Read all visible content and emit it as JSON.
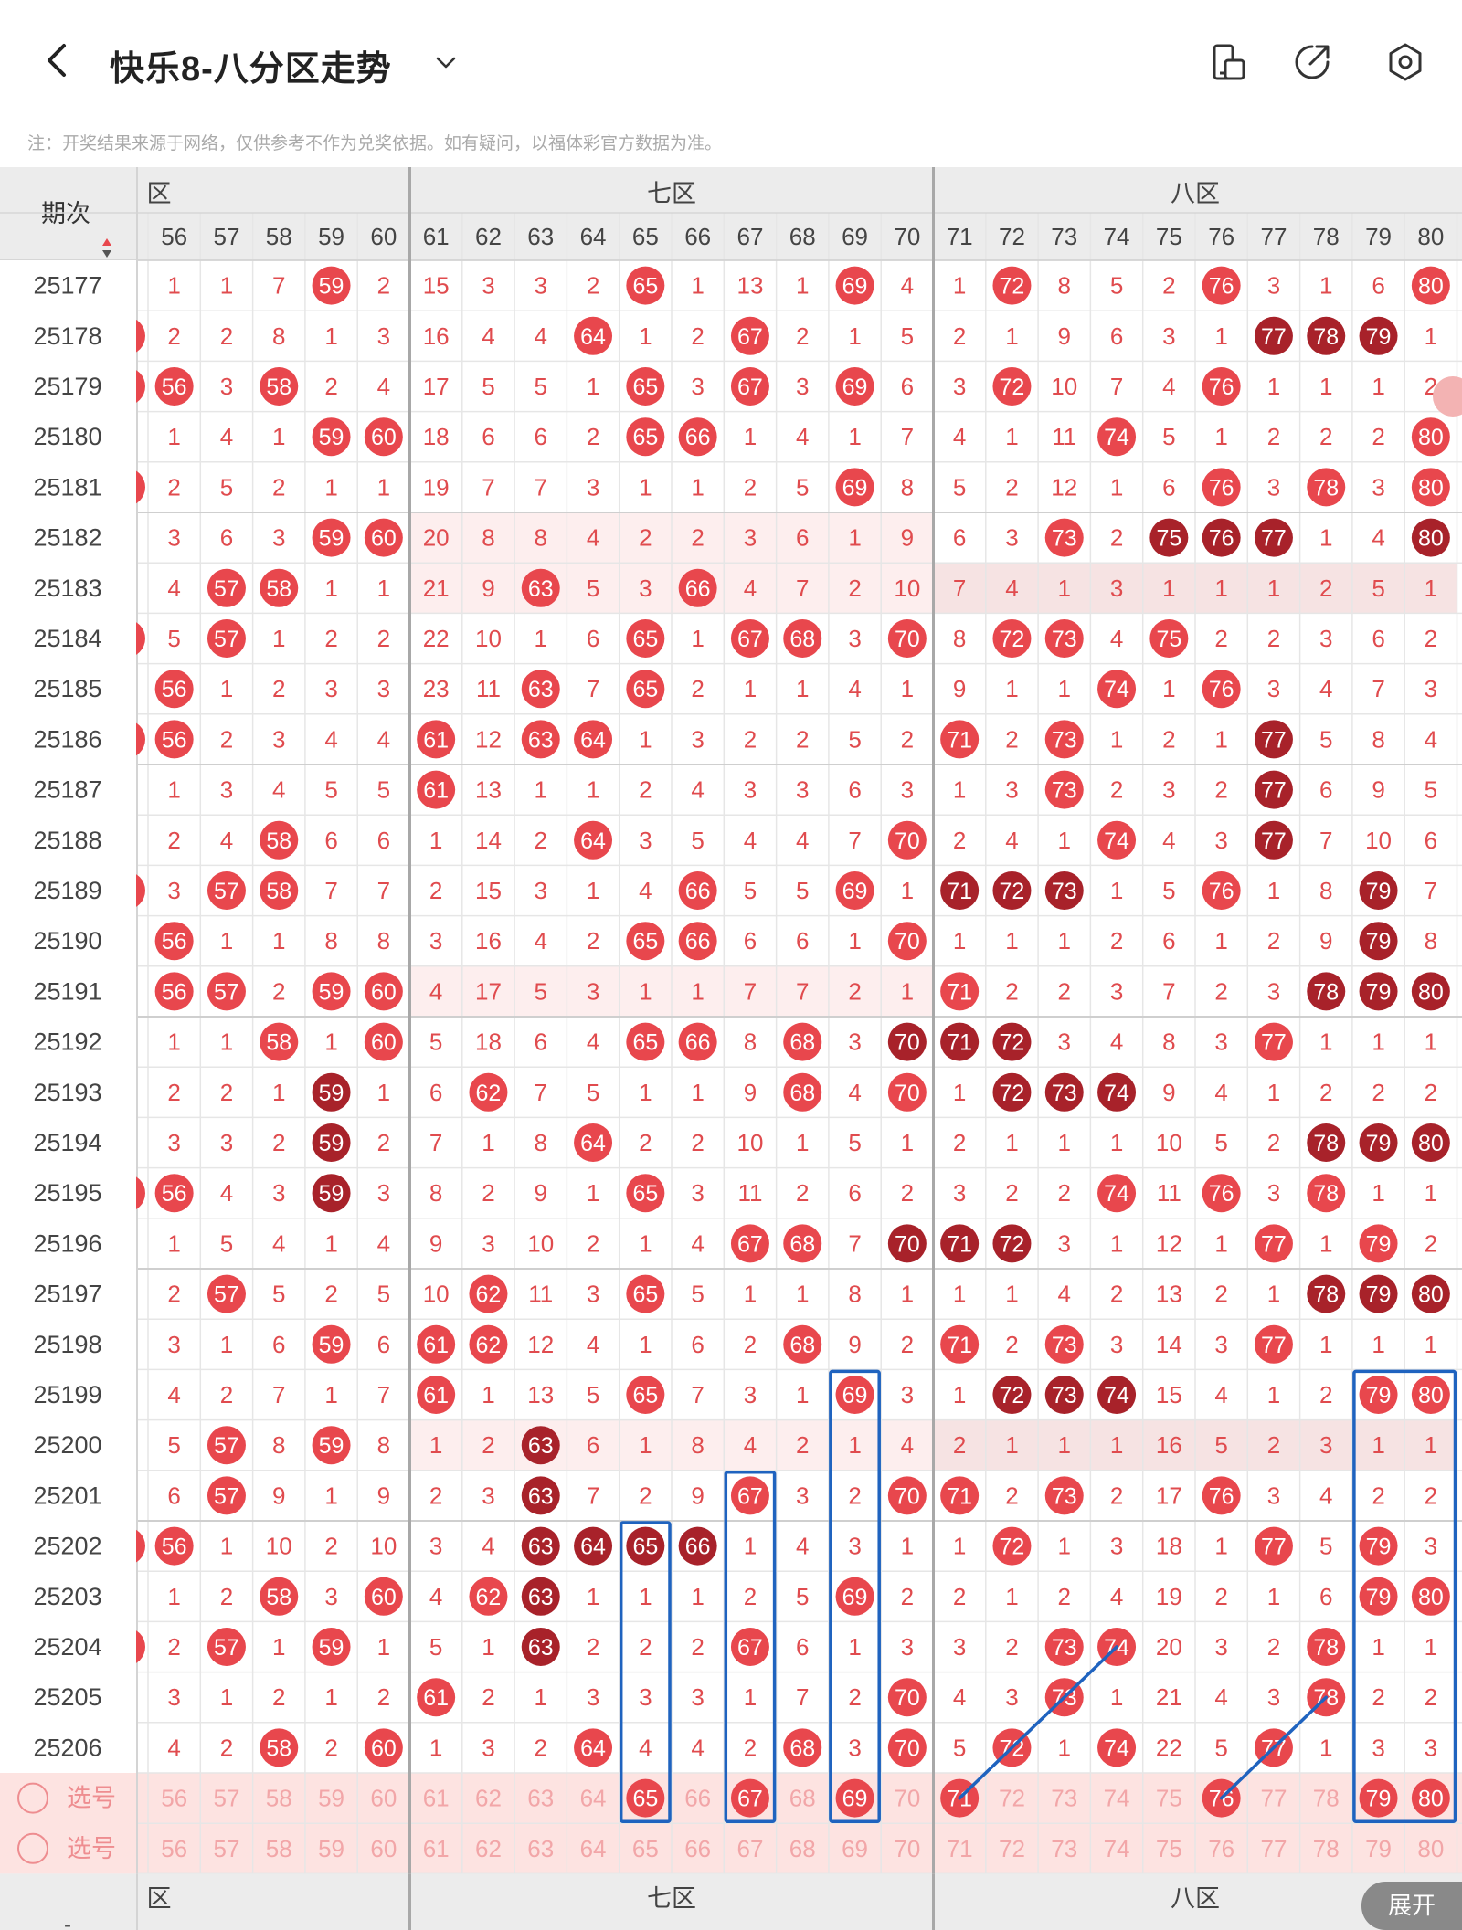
{
  "header": {
    "title": "快乐8-八分区走势",
    "notice": "注：开奖结果来源于网络，仅供参考不作为兑奖依据。如有疑问，以福体彩官方数据为准。"
  },
  "colors": {
    "red": "#e8474d",
    "dark_red": "#a8222a",
    "miss_text": "#e04b4e",
    "period_text": "#444444",
    "group_header_bg": "#ececec",
    "select_row_bg": "#fde3e1",
    "select_text": "#f2a6a8",
    "grid_line": "#e6e6e6",
    "zone_divider": "#a8a8a8",
    "annotation_blue": "#1f63bf"
  },
  "table": {
    "period_header": "期次",
    "zones": [
      {
        "label": "六区",
        "partial_label": "区",
        "start": 56,
        "end": 60
      },
      {
        "label": "七区",
        "start": 61,
        "end": 70
      },
      {
        "label": "八区",
        "start": 71,
        "end": 80
      }
    ],
    "columns": [
      "56",
      "57",
      "58",
      "59",
      "60",
      "61",
      "62",
      "63",
      "64",
      "65",
      "66",
      "67",
      "68",
      "69",
      "70",
      "71",
      "72",
      "73",
      "74",
      "75",
      "76",
      "77",
      "78",
      "79",
      "80"
    ],
    "rows": [
      {
        "period": "25177",
        "cells": [
          "1",
          "1",
          "7",
          "h59",
          "2",
          "15",
          "3",
          "3",
          "2",
          "h65",
          "1",
          "13",
          "1",
          "h69",
          "4",
          "1",
          "h72",
          "8",
          "5",
          "2",
          "h76",
          "3",
          "1",
          "6",
          "h80"
        ]
      },
      {
        "period": "25178",
        "cells": [
          "2",
          "2",
          "8",
          "1",
          "3",
          "16",
          "4",
          "4",
          "h64",
          "1",
          "2",
          "h67",
          "2",
          "1",
          "5",
          "2",
          "1",
          "9",
          "6",
          "3",
          "1",
          "d77",
          "d78",
          "d79",
          "1"
        ]
      },
      {
        "period": "25179",
        "cells": [
          "h56",
          "3",
          "h58",
          "2",
          "4",
          "17",
          "5",
          "5",
          "1",
          "h65",
          "3",
          "h67",
          "3",
          "h69",
          "6",
          "3",
          "h72",
          "10",
          "7",
          "4",
          "h76",
          "1",
          "1",
          "1",
          "2"
        ]
      },
      {
        "period": "25180",
        "cells": [
          "1",
          "4",
          "1",
          "h59",
          "h60",
          "18",
          "6",
          "6",
          "2",
          "h65",
          "h66",
          "1",
          "4",
          "1",
          "7",
          "4",
          "1",
          "11",
          "h74",
          "5",
          "1",
          "2",
          "2",
          "2",
          "h80"
        ]
      },
      {
        "period": "25181",
        "cells": [
          "2",
          "5",
          "2",
          "1",
          "1",
          "19",
          "7",
          "7",
          "3",
          "1",
          "1",
          "2",
          "5",
          "h69",
          "8",
          "5",
          "2",
          "12",
          "1",
          "6",
          "h76",
          "3",
          "h78",
          "3",
          "h80"
        ]
      },
      {
        "period": "25182",
        "cells": [
          "3",
          "6",
          "3",
          "h59",
          "h60",
          "20",
          "8",
          "8",
          "4",
          "2",
          "2",
          "3",
          "6",
          "1",
          "9",
          "6",
          "3",
          "h73",
          "2",
          "d75",
          "d76",
          "d77",
          "1",
          "4",
          "d80"
        ]
      },
      {
        "period": "25183",
        "cells": [
          "4",
          "h57",
          "h58",
          "1",
          "1",
          "21",
          "9",
          "h63",
          "5",
          "3",
          "h66",
          "4",
          "7",
          "2",
          "10",
          "7",
          "4",
          "1",
          "3",
          "1",
          "1",
          "1",
          "2",
          "5",
          "1"
        ]
      },
      {
        "period": "25184",
        "cells": [
          "5",
          "h57",
          "1",
          "2",
          "2",
          "22",
          "10",
          "1",
          "6",
          "h65",
          "1",
          "h67",
          "h68",
          "3",
          "h70",
          "8",
          "h72",
          "h73",
          "4",
          "h75",
          "2",
          "2",
          "3",
          "6",
          "2"
        ]
      },
      {
        "period": "25185",
        "cells": [
          "h56",
          "1",
          "2",
          "3",
          "3",
          "23",
          "11",
          "h63",
          "7",
          "h65",
          "2",
          "1",
          "1",
          "4",
          "1",
          "9",
          "1",
          "1",
          "h74",
          "1",
          "h76",
          "3",
          "4",
          "7",
          "3"
        ]
      },
      {
        "period": "25186",
        "cells": [
          "h56",
          "2",
          "3",
          "4",
          "4",
          "h61",
          "12",
          "h63",
          "h64",
          "1",
          "3",
          "2",
          "2",
          "5",
          "2",
          "h71",
          "2",
          "h73",
          "1",
          "2",
          "1",
          "d77",
          "5",
          "8",
          "4"
        ]
      },
      {
        "period": "25187",
        "cells": [
          "1",
          "3",
          "4",
          "5",
          "5",
          "h61",
          "13",
          "1",
          "1",
          "2",
          "4",
          "3",
          "3",
          "6",
          "3",
          "1",
          "3",
          "h73",
          "2",
          "3",
          "2",
          "d77",
          "6",
          "9",
          "5"
        ]
      },
      {
        "period": "25188",
        "cells": [
          "2",
          "4",
          "h58",
          "6",
          "6",
          "1",
          "14",
          "2",
          "h64",
          "3",
          "5",
          "4",
          "4",
          "7",
          "h70",
          "2",
          "4",
          "1",
          "h74",
          "4",
          "3",
          "d77",
          "7",
          "10",
          "6"
        ]
      },
      {
        "period": "25189",
        "cells": [
          "3",
          "h57",
          "h58",
          "7",
          "7",
          "2",
          "15",
          "3",
          "1",
          "4",
          "h66",
          "5",
          "5",
          "h69",
          "1",
          "d71",
          "d72",
          "d73",
          "1",
          "5",
          "h76",
          "1",
          "8",
          "d79",
          "7"
        ]
      },
      {
        "period": "25190",
        "cells": [
          "h56",
          "1",
          "1",
          "8",
          "8",
          "3",
          "16",
          "4",
          "2",
          "h65",
          "h66",
          "6",
          "6",
          "1",
          "h70",
          "1",
          "1",
          "1",
          "2",
          "6",
          "1",
          "2",
          "9",
          "d79",
          "8"
        ]
      },
      {
        "period": "25191",
        "cells": [
          "h56",
          "h57",
          "2",
          "h59",
          "h60",
          "4",
          "17",
          "5",
          "3",
          "1",
          "1",
          "7",
          "7",
          "2",
          "1",
          "h71",
          "2",
          "2",
          "3",
          "7",
          "2",
          "3",
          "d78",
          "d79",
          "d80"
        ]
      },
      {
        "period": "25192",
        "cells": [
          "1",
          "1",
          "h58",
          "1",
          "h60",
          "5",
          "18",
          "6",
          "4",
          "h65",
          "h66",
          "8",
          "h68",
          "3",
          "d70",
          "d71",
          "d72",
          "3",
          "4",
          "8",
          "3",
          "h77",
          "1",
          "1",
          "1"
        ]
      },
      {
        "period": "25193",
        "cells": [
          "2",
          "2",
          "1",
          "d59",
          "1",
          "6",
          "h62",
          "7",
          "5",
          "1",
          "1",
          "9",
          "h68",
          "4",
          "h70",
          "1",
          "d72",
          "d73",
          "d74",
          "9",
          "4",
          "1",
          "2",
          "2",
          "2"
        ]
      },
      {
        "period": "25194",
        "cells": [
          "3",
          "3",
          "2",
          "d59",
          "2",
          "7",
          "1",
          "8",
          "h64",
          "2",
          "2",
          "10",
          "1",
          "5",
          "1",
          "2",
          "1",
          "1",
          "1",
          "10",
          "5",
          "2",
          "d78",
          "d79",
          "d80"
        ]
      },
      {
        "period": "25195",
        "cells": [
          "h56",
          "4",
          "3",
          "d59",
          "3",
          "8",
          "2",
          "9",
          "1",
          "h65",
          "3",
          "11",
          "2",
          "6",
          "2",
          "3",
          "2",
          "2",
          "h74",
          "11",
          "h76",
          "3",
          "h78",
          "1",
          "1"
        ]
      },
      {
        "period": "25196",
        "cells": [
          "1",
          "5",
          "4",
          "1",
          "4",
          "9",
          "3",
          "10",
          "2",
          "1",
          "4",
          "h67",
          "h68",
          "7",
          "d70",
          "d71",
          "d72",
          "3",
          "1",
          "12",
          "1",
          "h77",
          "1",
          "h79",
          "2"
        ]
      },
      {
        "period": "25197",
        "cells": [
          "2",
          "h57",
          "5",
          "2",
          "5",
          "10",
          "h62",
          "11",
          "3",
          "h65",
          "5",
          "1",
          "1",
          "8",
          "1",
          "1",
          "1",
          "4",
          "2",
          "13",
          "2",
          "1",
          "d78",
          "d79",
          "d80"
        ]
      },
      {
        "period": "25198",
        "cells": [
          "3",
          "1",
          "6",
          "h59",
          "6",
          "h61",
          "h62",
          "12",
          "4",
          "1",
          "6",
          "2",
          "h68",
          "9",
          "2",
          "h71",
          "2",
          "h73",
          "3",
          "14",
          "3",
          "h77",
          "1",
          "1",
          "1"
        ]
      },
      {
        "period": "25199",
        "cells": [
          "4",
          "2",
          "7",
          "1",
          "7",
          "h61",
          "1",
          "13",
          "5",
          "h65",
          "7",
          "3",
          "1",
          "h69",
          "3",
          "1",
          "d72",
          "d73",
          "d74",
          "15",
          "4",
          "1",
          "2",
          "h79",
          "h80"
        ]
      },
      {
        "period": "25200",
        "cells": [
          "5",
          "h57",
          "8",
          "h59",
          "8",
          "1",
          "2",
          "d63",
          "6",
          "1",
          "8",
          "4",
          "2",
          "1",
          "4",
          "2",
          "1",
          "1",
          "1",
          "16",
          "5",
          "2",
          "3",
          "1",
          "1"
        ]
      },
      {
        "period": "25201",
        "cells": [
          "6",
          "h57",
          "9",
          "1",
          "9",
          "2",
          "3",
          "d63",
          "7",
          "2",
          "9",
          "h67",
          "3",
          "2",
          "h70",
          "h71",
          "2",
          "h73",
          "2",
          "17",
          "h76",
          "3",
          "4",
          "2",
          "2"
        ]
      },
      {
        "period": "25202",
        "cells": [
          "h56",
          "1",
          "10",
          "2",
          "10",
          "3",
          "4",
          "d63",
          "d64",
          "d65",
          "d66",
          "1",
          "4",
          "3",
          "1",
          "1",
          "h72",
          "1",
          "3",
          "18",
          "1",
          "h77",
          "5",
          "h79",
          "3"
        ]
      },
      {
        "period": "25203",
        "cells": [
          "1",
          "2",
          "h58",
          "3",
          "h60",
          "4",
          "h62",
          "d63",
          "1",
          "1",
          "1",
          "2",
          "5",
          "h69",
          "2",
          "2",
          "1",
          "2",
          "4",
          "19",
          "2",
          "1",
          "6",
          "h79",
          "h80"
        ]
      },
      {
        "period": "25204",
        "cells": [
          "2",
          "h57",
          "1",
          "h59",
          "1",
          "5",
          "1",
          "d63",
          "2",
          "2",
          "2",
          "h67",
          "6",
          "1",
          "3",
          "3",
          "2",
          "h73",
          "h74",
          "20",
          "3",
          "2",
          "h78",
          "1",
          "1"
        ]
      },
      {
        "period": "25205",
        "cells": [
          "3",
          "1",
          "2",
          "1",
          "2",
          "h61",
          "2",
          "1",
          "3",
          "3",
          "3",
          "1",
          "7",
          "2",
          "h70",
          "4",
          "3",
          "h73",
          "1",
          "21",
          "4",
          "3",
          "h78",
          "2",
          "2"
        ]
      },
      {
        "period": "25206",
        "cells": [
          "4",
          "2",
          "h58",
          "2",
          "h60",
          "1",
          "3",
          "2",
          "h64",
          "4",
          "4",
          "2",
          "h68",
          "3",
          "h70",
          "5",
          "h72",
          "1",
          "h74",
          "22",
          "5",
          "h77",
          "1",
          "3",
          "3"
        ]
      }
    ],
    "highlighted_rows": [
      "25182",
      "25183",
      "25191",
      "25200"
    ],
    "zone8_shaded_rows": [
      "25183",
      "25200"
    ],
    "select_rows": [
      {
        "label": "选号",
        "selected": [
          "65",
          "67",
          "69",
          "71",
          "76",
          "79",
          "80"
        ]
      },
      {
        "label": "选号",
        "selected": []
      }
    ],
    "period_left_dots": [
      "25178",
      "25179",
      "25181",
      "25184",
      "25186",
      "25189",
      "25195",
      "25202",
      "25204"
    ]
  },
  "footer": {
    "zone_labels": [
      "区",
      "七区",
      "八区"
    ],
    "left_dash": "-",
    "expand_label": "展开"
  }
}
